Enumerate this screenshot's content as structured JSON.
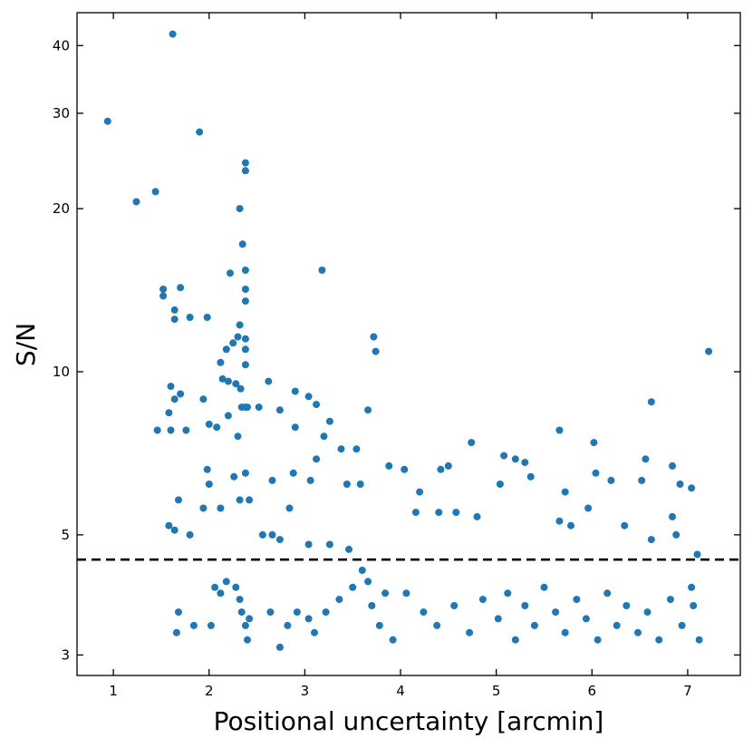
{
  "chart_data": {
    "type": "scatter",
    "title": "",
    "xlabel": "Positional uncertainty [arcmin]",
    "ylabel": "S/N",
    "xlim": [
      0.62,
      7.55
    ],
    "ylim": [
      2.75,
      46
    ],
    "yscale": "log",
    "grid": false,
    "legend": "none",
    "x_ticks": [
      1,
      2,
      3,
      4,
      5,
      6,
      7
    ],
    "x_tick_labels": [
      "1",
      "2",
      "3",
      "4",
      "5",
      "6",
      "7"
    ],
    "y_ticks": [
      3,
      5,
      10,
      20,
      30,
      40
    ],
    "y_tick_labels": [
      "3",
      "5",
      "10",
      "20",
      "30",
      "40"
    ],
    "threshold_line": {
      "y": 4.5,
      "style": "dashed",
      "color": "#000000"
    },
    "marker_color": "#1f77b4",
    "series": [
      {
        "points": [
          [
            0.94,
            29.0
          ],
          [
            1.24,
            20.6
          ],
          [
            1.44,
            21.5
          ],
          [
            1.62,
            42.0
          ],
          [
            1.9,
            27.7
          ],
          [
            2.32,
            20.0
          ],
          [
            2.38,
            23.5
          ],
          [
            2.38,
            24.3
          ],
          [
            2.35,
            17.2
          ],
          [
            3.18,
            15.4
          ],
          [
            1.52,
            14.2
          ],
          [
            1.52,
            13.8
          ],
          [
            1.7,
            14.3
          ],
          [
            1.64,
            13.0
          ],
          [
            1.64,
            12.5
          ],
          [
            1.8,
            12.6
          ],
          [
            1.98,
            12.6
          ],
          [
            2.22,
            15.2
          ],
          [
            2.38,
            15.4
          ],
          [
            2.38,
            14.2
          ],
          [
            2.38,
            13.5
          ],
          [
            2.32,
            12.2
          ],
          [
            2.3,
            11.6
          ],
          [
            2.25,
            11.3
          ],
          [
            2.18,
            11.0
          ],
          [
            2.12,
            10.4
          ],
          [
            2.14,
            9.7
          ],
          [
            2.2,
            9.6
          ],
          [
            2.28,
            9.5
          ],
          [
            2.33,
            9.3
          ],
          [
            2.38,
            11.5
          ],
          [
            2.38,
            11.0
          ],
          [
            2.38,
            10.3
          ],
          [
            1.6,
            9.4
          ],
          [
            1.64,
            8.9
          ],
          [
            1.7,
            9.1
          ],
          [
            1.58,
            8.4
          ],
          [
            1.46,
            7.8
          ],
          [
            1.6,
            7.8
          ],
          [
            1.76,
            7.8
          ],
          [
            1.94,
            8.9
          ],
          [
            2.0,
            8.0
          ],
          [
            2.08,
            7.9
          ],
          [
            2.2,
            8.3
          ],
          [
            2.3,
            7.6
          ],
          [
            2.34,
            8.6
          ],
          [
            2.38,
            8.6
          ],
          [
            2.4,
            8.6
          ],
          [
            2.52,
            8.6
          ],
          [
            2.62,
            9.6
          ],
          [
            2.74,
            8.5
          ],
          [
            2.9,
            9.2
          ],
          [
            3.04,
            9.0
          ],
          [
            3.12,
            8.7
          ],
          [
            2.9,
            7.9
          ],
          [
            3.26,
            8.1
          ],
          [
            3.2,
            7.6
          ],
          [
            3.38,
            7.2
          ],
          [
            3.54,
            7.2
          ],
          [
            3.72,
            11.6
          ],
          [
            3.74,
            10.9
          ],
          [
            3.66,
            8.5
          ],
          [
            7.22,
            10.9
          ],
          [
            6.62,
            8.8
          ],
          [
            5.66,
            7.8
          ],
          [
            6.02,
            7.4
          ],
          [
            6.56,
            6.9
          ],
          [
            6.84,
            6.7
          ],
          [
            4.74,
            7.4
          ],
          [
            5.08,
            7.0
          ],
          [
            5.2,
            6.9
          ],
          [
            5.3,
            6.8
          ],
          [
            4.5,
            6.7
          ],
          [
            4.42,
            6.6
          ],
          [
            4.04,
            6.6
          ],
          [
            3.88,
            6.7
          ],
          [
            3.12,
            6.9
          ],
          [
            3.06,
            6.3
          ],
          [
            2.88,
            6.5
          ],
          [
            2.66,
            6.3
          ],
          [
            1.98,
            6.6
          ],
          [
            2.0,
            6.2
          ],
          [
            2.26,
            6.4
          ],
          [
            2.38,
            6.5
          ],
          [
            6.04,
            6.5
          ],
          [
            6.2,
            6.3
          ],
          [
            6.52,
            6.3
          ],
          [
            6.92,
            6.2
          ],
          [
            7.04,
            6.1
          ],
          [
            5.04,
            6.2
          ],
          [
            5.36,
            6.4
          ],
          [
            5.72,
            6.0
          ],
          [
            4.2,
            6.0
          ],
          [
            3.44,
            6.2
          ],
          [
            3.58,
            6.2
          ],
          [
            1.68,
            5.8
          ],
          [
            1.58,
            5.2
          ],
          [
            1.64,
            5.1
          ],
          [
            1.8,
            5.0
          ],
          [
            1.94,
            5.6
          ],
          [
            2.12,
            5.6
          ],
          [
            2.32,
            5.8
          ],
          [
            2.42,
            5.8
          ],
          [
            2.56,
            5.0
          ],
          [
            2.66,
            5.0
          ],
          [
            2.84,
            5.6
          ],
          [
            2.74,
            4.9
          ],
          [
            3.04,
            4.8
          ],
          [
            3.26,
            4.8
          ],
          [
            3.46,
            4.7
          ],
          [
            4.16,
            5.5
          ],
          [
            4.4,
            5.5
          ],
          [
            4.58,
            5.5
          ],
          [
            4.8,
            5.4
          ],
          [
            5.66,
            5.3
          ],
          [
            5.78,
            5.2
          ],
          [
            5.96,
            5.6
          ],
          [
            6.34,
            5.2
          ],
          [
            6.84,
            5.4
          ],
          [
            6.88,
            5.0
          ],
          [
            6.62,
            4.9
          ],
          [
            1.66,
            3.3
          ],
          [
            1.68,
            3.6
          ],
          [
            1.84,
            3.4
          ],
          [
            2.02,
            3.4
          ],
          [
            2.06,
            4.0
          ],
          [
            2.12,
            3.9
          ],
          [
            2.18,
            4.1
          ],
          [
            2.28,
            4.0
          ],
          [
            2.32,
            3.8
          ],
          [
            2.34,
            3.6
          ],
          [
            2.38,
            3.4
          ],
          [
            2.4,
            3.2
          ],
          [
            2.42,
            3.5
          ],
          [
            2.64,
            3.6
          ],
          [
            2.74,
            3.1
          ],
          [
            2.82,
            3.4
          ],
          [
            2.92,
            3.6
          ],
          [
            3.04,
            3.5
          ],
          [
            3.1,
            3.3
          ],
          [
            3.22,
            3.6
          ],
          [
            3.36,
            3.8
          ],
          [
            3.5,
            4.0
          ],
          [
            3.6,
            4.3
          ],
          [
            3.66,
            4.1
          ],
          [
            3.7,
            3.7
          ],
          [
            3.78,
            3.4
          ],
          [
            3.84,
            3.9
          ],
          [
            3.92,
            3.2
          ],
          [
            4.06,
            3.9
          ],
          [
            4.24,
            3.6
          ],
          [
            4.38,
            3.4
          ],
          [
            4.56,
            3.7
          ],
          [
            4.72,
            3.3
          ],
          [
            4.86,
            3.8
          ],
          [
            5.02,
            3.5
          ],
          [
            5.12,
            3.9
          ],
          [
            5.2,
            3.2
          ],
          [
            5.3,
            3.7
          ],
          [
            5.4,
            3.4
          ],
          [
            5.5,
            4.0
          ],
          [
            5.62,
            3.6
          ],
          [
            5.72,
            3.3
          ],
          [
            5.84,
            3.8
          ],
          [
            5.94,
            3.5
          ],
          [
            6.06,
            3.2
          ],
          [
            6.16,
            3.9
          ],
          [
            6.26,
            3.4
          ],
          [
            6.36,
            3.7
          ],
          [
            6.48,
            3.3
          ],
          [
            6.58,
            3.6
          ],
          [
            6.7,
            3.2
          ],
          [
            6.82,
            3.8
          ],
          [
            6.94,
            3.4
          ],
          [
            7.06,
            3.7
          ],
          [
            7.12,
            3.2
          ],
          [
            7.1,
            4.6
          ],
          [
            7.04,
            4.0
          ]
        ]
      }
    ]
  }
}
